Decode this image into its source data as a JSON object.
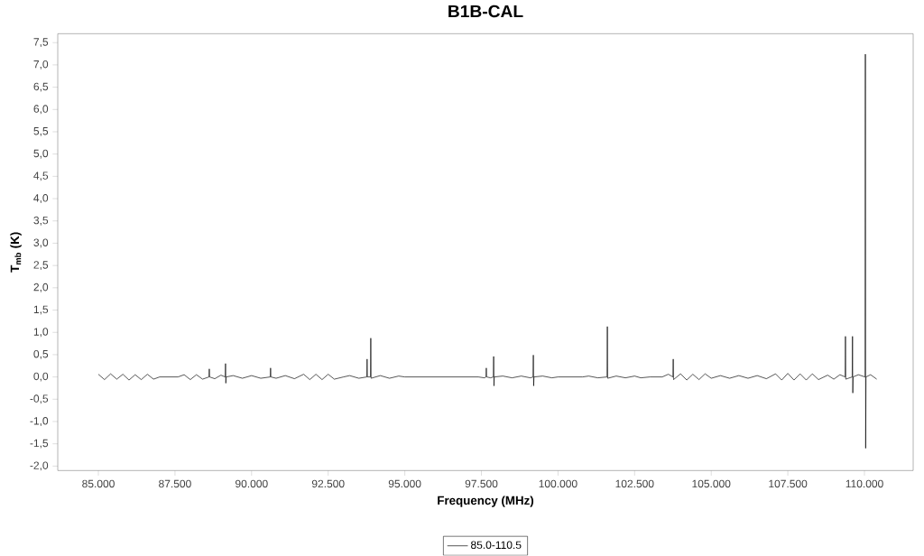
{
  "chart_data": {
    "type": "line",
    "title": "B1B-CAL",
    "xlabel": "Frequency (MHz)",
    "ylabel": "T$_{mb}$ (K)",
    "xlim": [
      83675,
      111590
    ],
    "ylim": [
      -2.1,
      7.7
    ],
    "xticks": [
      {
        "value": 85000,
        "label": "85.000"
      },
      {
        "value": 87500,
        "label": "87.500"
      },
      {
        "value": 90000,
        "label": "90.000"
      },
      {
        "value": 92500,
        "label": "92.500"
      },
      {
        "value": 95000,
        "label": "95.000"
      },
      {
        "value": 97500,
        "label": "97.500"
      },
      {
        "value": 100000,
        "label": "100.000"
      },
      {
        "value": 102500,
        "label": "102.500"
      },
      {
        "value": 105000,
        "label": "105.000"
      },
      {
        "value": 107500,
        "label": "107.500"
      },
      {
        "value": 110000,
        "label": "110.000"
      }
    ],
    "yticks": [
      {
        "value": -2,
        "label": "-2,0"
      },
      {
        "value": -1.5,
        "label": "-1,5"
      },
      {
        "value": -1,
        "label": "-1,0"
      },
      {
        "value": -0.5,
        "label": "-0,5"
      },
      {
        "value": 0,
        "label": "0,0"
      },
      {
        "value": 0.5,
        "label": "0,5"
      },
      {
        "value": 1,
        "label": "1,0"
      },
      {
        "value": 1.5,
        "label": "1,5"
      },
      {
        "value": 2,
        "label": "2,0"
      },
      {
        "value": 2.5,
        "label": "2,5"
      },
      {
        "value": 3,
        "label": "3,0"
      },
      {
        "value": 3.5,
        "label": "3,5"
      },
      {
        "value": 4,
        "label": "4,0"
      },
      {
        "value": 4.5,
        "label": "4,5"
      },
      {
        "value": 5,
        "label": "5,0"
      },
      {
        "value": 5.5,
        "label": "5,5"
      },
      {
        "value": 6,
        "label": "6,0"
      },
      {
        "value": 6.5,
        "label": "6,5"
      },
      {
        "value": 7,
        "label": "7,0"
      },
      {
        "value": 7.5,
        "label": "7,5"
      }
    ],
    "grid": false,
    "legend": "bottom",
    "marker": "none",
    "line_style": "solid",
    "x": [
      85000,
      85200,
      85400,
      85600,
      85800,
      86000,
      86200,
      86400,
      86600,
      86800,
      87000,
      87600,
      87800,
      88000,
      88200,
      88400,
      88610,
      88620,
      88630,
      88800,
      89000,
      89140,
      89150,
      89160,
      89170,
      89400,
      89700,
      90000,
      90300,
      90610,
      90620,
      90630,
      90800,
      91100,
      91400,
      91700,
      91900,
      92100,
      92300,
      92500,
      92700,
      93000,
      93200,
      93500,
      93760,
      93770,
      93780,
      93880,
      93890,
      93900,
      94200,
      94500,
      94800,
      95000,
      97400,
      97600,
      97650,
      97660,
      97670,
      97800,
      97890,
      97900,
      97910,
      97920,
      98200,
      98500,
      98800,
      99100,
      99185,
      99195,
      99205,
      99215,
      99500,
      99800,
      100000,
      100800,
      101000,
      101300,
      101600,
      101610,
      101620,
      101900,
      102200,
      102500,
      102700,
      103000,
      103400,
      103600,
      103750,
      103760,
      103770,
      104000,
      104200,
      104400,
      104600,
      104800,
      105000,
      105300,
      105600,
      105900,
      106200,
      106500,
      106800,
      107100,
      107300,
      107500,
      107700,
      107900,
      108100,
      108300,
      108500,
      108800,
      109000,
      109200,
      109370,
      109380,
      109390,
      109600,
      109610,
      109620,
      109630,
      109800,
      110020,
      110030,
      110040,
      110050,
      110200,
      110400
    ],
    "series": [
      {
        "name": "85.0-110.5",
        "color": "#000000",
        "values": [
          0.06,
          -0.06,
          0.07,
          -0.05,
          0.06,
          -0.07,
          0.05,
          -0.06,
          0.06,
          -0.05,
          0,
          0,
          0.05,
          -0.06,
          0.05,
          -0.05,
          0,
          0.18,
          0,
          -0.04,
          0.04,
          0,
          0.3,
          -0.14,
          0,
          0.03,
          -0.03,
          0.03,
          -0.03,
          0,
          0.2,
          0,
          -0.03,
          0.03,
          -0.04,
          0.06,
          -0.06,
          0.06,
          -0.06,
          0.06,
          -0.05,
          0,
          0.03,
          -0.03,
          0,
          0.4,
          0,
          0,
          0.87,
          -0.03,
          0.03,
          -0.03,
          0.02,
          0,
          0,
          -0.02,
          0,
          0.2,
          0,
          -0.02,
          0,
          0.46,
          -0.2,
          0,
          0.02,
          -0.02,
          0.02,
          -0.02,
          0,
          0.49,
          -0.2,
          0,
          0.02,
          -0.02,
          0,
          0,
          0.02,
          -0.02,
          0,
          1.13,
          -0.03,
          0.02,
          -0.02,
          0.02,
          -0.02,
          0,
          0,
          0.06,
          0,
          0.4,
          -0.06,
          0.07,
          -0.07,
          0.06,
          -0.06,
          0.07,
          -0.03,
          0.03,
          -0.03,
          0.03,
          -0.03,
          0.03,
          -0.04,
          0.07,
          -0.07,
          0.08,
          -0.07,
          0.07,
          -0.07,
          0.07,
          -0.06,
          0.04,
          -0.05,
          0.05,
          0,
          0.91,
          -0.05,
          0,
          0.91,
          -0.36,
          0,
          0.05,
          0,
          7.24,
          -1.6,
          0,
          0.05,
          -0.05
        ]
      }
    ]
  }
}
